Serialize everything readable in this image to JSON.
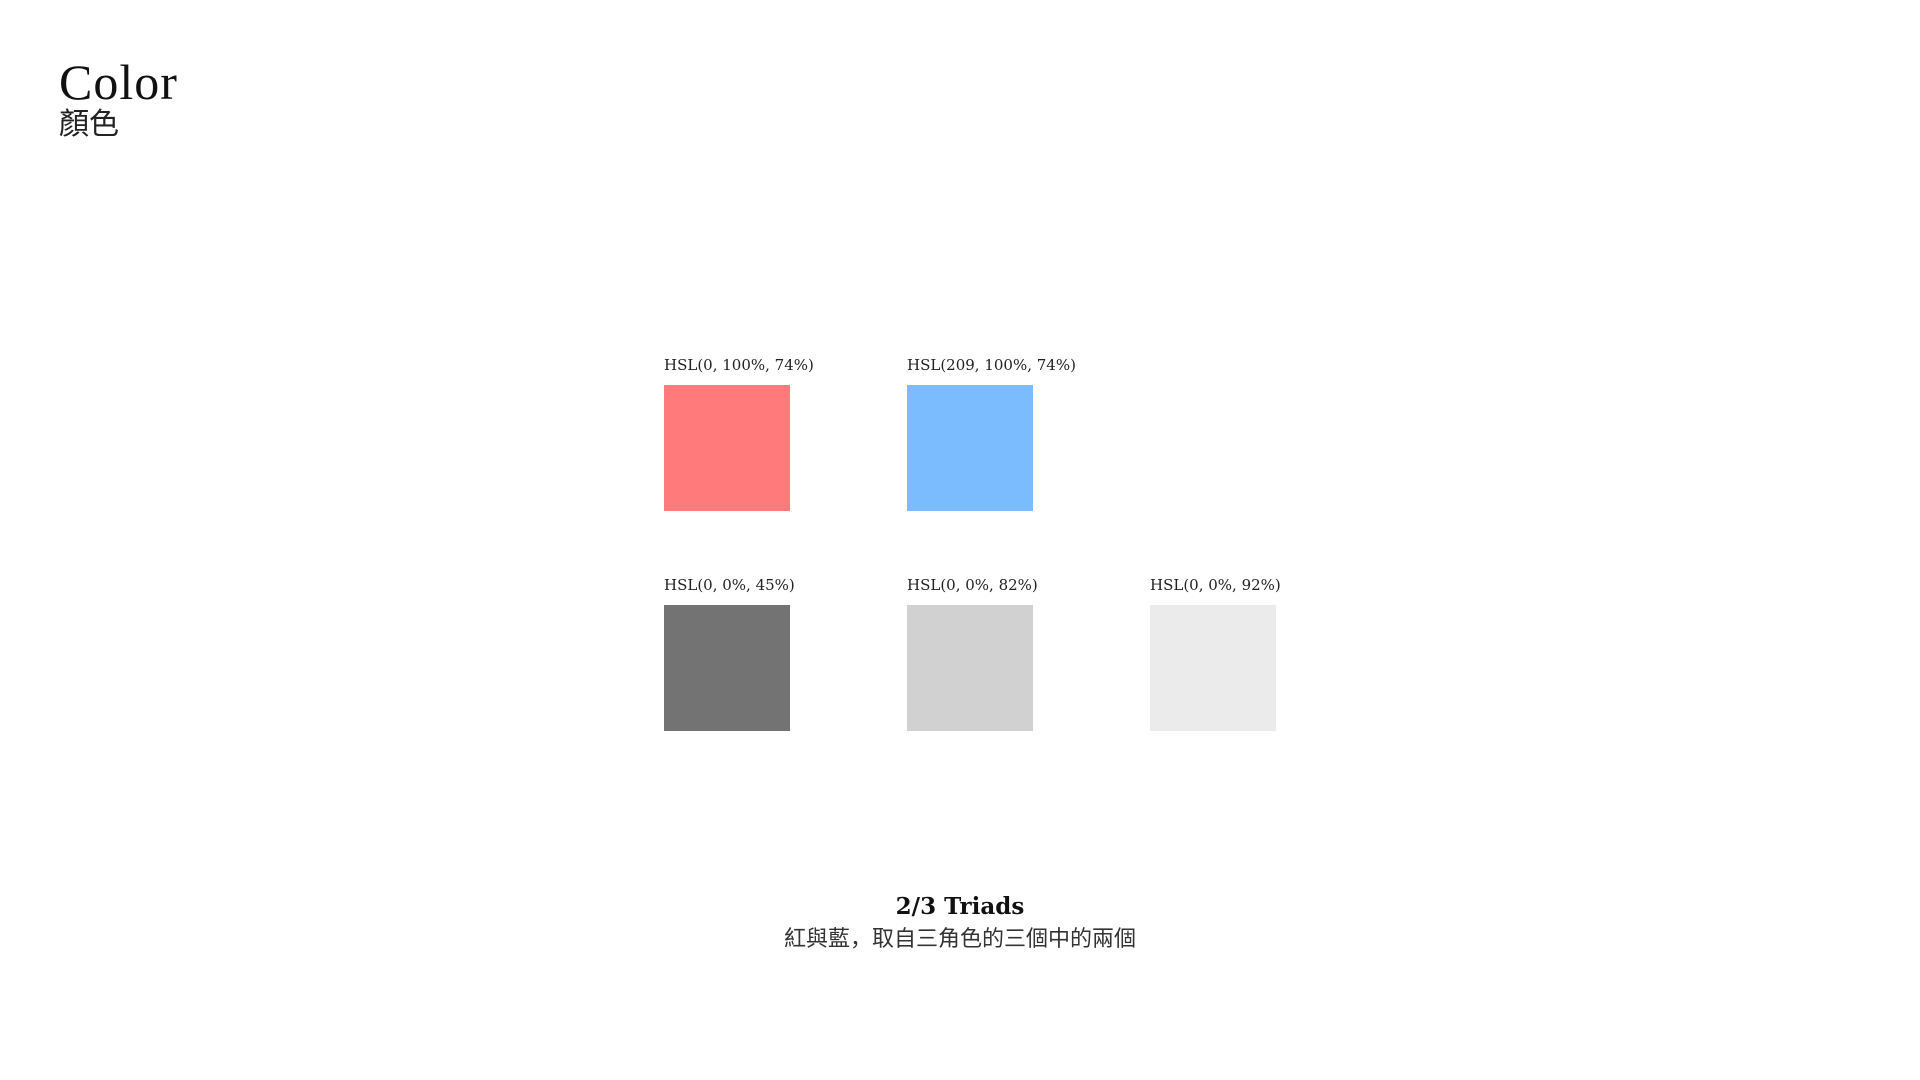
{
  "header": {
    "title_en": "Color",
    "title_zh": "顏色"
  },
  "swatches": [
    {
      "label": "HSL(0, 100%, 74%)",
      "color": "#ff7a7a"
    },
    {
      "label": "HSL(209, 100%, 74%)",
      "color": "#7abcff"
    },
    {
      "label": "HSL(0, 0%, 45%)",
      "color": "#737373"
    },
    {
      "label": "HSL(0, 0%, 82%)",
      "color": "#d1d1d1"
    },
    {
      "label": "HSL(0, 0%, 92%)",
      "color": "#ebebeb"
    }
  ],
  "caption": {
    "title": "2/3 Triads",
    "subtitle": "紅與藍，取自三角色的三個中的兩個"
  }
}
